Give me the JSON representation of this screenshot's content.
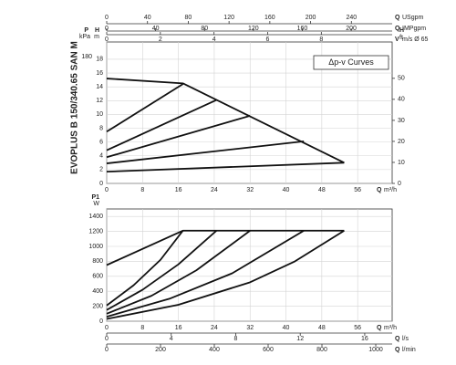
{
  "side_title": "EVOPLUS B 150/340.65 SAN M",
  "chart_data": [
    {
      "type": "line",
      "legend_box": "Δp-v Curves",
      "y_label": "H",
      "y_unit": "m",
      "ylim": [
        0,
        20.5
      ],
      "yticks": [
        0,
        2,
        4,
        6,
        8,
        10,
        12,
        14,
        16,
        18
      ],
      "x_label": "Q",
      "x_unit": "m³/h",
      "xlim": [
        0,
        63.7
      ],
      "xticks": [
        0,
        8,
        16,
        24,
        32,
        40,
        48,
        56
      ],
      "grid": true,
      "top_axes": [
        {
          "label": "Q",
          "unit": "USgpm",
          "lim": [
            0,
            280
          ],
          "ticks": [
            0,
            40,
            80,
            120,
            160,
            200,
            240
          ]
        },
        {
          "label": "Q",
          "unit": "IMPgpm",
          "lim": [
            0,
            233.5
          ],
          "ticks": [
            0,
            40,
            80,
            120,
            160,
            200
          ]
        },
        {
          "label": "V",
          "unit": "m/s Ø 65",
          "lim": [
            0,
            10.64
          ],
          "ticks": [
            0,
            2,
            4,
            6,
            8
          ]
        }
      ],
      "left_axes": [
        {
          "label": "P",
          "unit": "kPa",
          "lim": [
            0,
            201
          ],
          "ticks": [
            180
          ]
        }
      ],
      "right_axes": [
        {
          "label": "H",
          "unit": "ft",
          "lim": [
            0,
            67.3
          ],
          "ticks": [
            0,
            10,
            20,
            30,
            40,
            50
          ]
        }
      ],
      "series": [
        {
          "color": "#111111",
          "x": [
            0,
            17,
            53
          ],
          "values": [
            15.2,
            14.5,
            3.0
          ]
        },
        {
          "color": "#111111",
          "x": [
            0,
            17
          ],
          "values": [
            7.5,
            14.4
          ]
        },
        {
          "color": "#111111",
          "x": [
            0,
            24.5
          ],
          "values": [
            4.8,
            12.1
          ]
        },
        {
          "color": "#111111",
          "x": [
            0,
            32
          ],
          "values": [
            3.8,
            9.8
          ]
        },
        {
          "color": "#111111",
          "x": [
            0,
            44
          ],
          "values": [
            2.9,
            6.1
          ]
        },
        {
          "color": "#111111",
          "x": [
            0,
            53
          ],
          "values": [
            1.7,
            3.0
          ]
        }
      ]
    },
    {
      "type": "line",
      "y_label": "P1",
      "y_unit": "W",
      "ylim": [
        0,
        1500
      ],
      "yticks": [
        0,
        200,
        400,
        600,
        800,
        1000,
        1200,
        1400
      ],
      "x_label": "Q",
      "x_unit": "m³/h",
      "xlim": [
        0,
        63.7
      ],
      "xticks": [
        0,
        8,
        16,
        24,
        32,
        40,
        48,
        56
      ],
      "grid": true,
      "bottom_axes": [
        {
          "label": "Q",
          "unit": "l/s",
          "lim": [
            0,
            17.7
          ],
          "ticks": [
            0,
            4,
            8,
            12,
            16
          ]
        },
        {
          "label": "Q",
          "unit": "l/min",
          "lim": [
            0,
            1061
          ],
          "ticks": [
            0,
            200,
            400,
            600,
            800,
            1000
          ]
        }
      ],
      "series": [
        {
          "color": "#111111",
          "x": [
            0,
            17,
            53
          ],
          "values": [
            750,
            1210,
            1210
          ]
        },
        {
          "color": "#111111",
          "x": [
            0,
            6,
            12,
            17
          ],
          "values": [
            210,
            480,
            820,
            1210
          ]
        },
        {
          "color": "#111111",
          "x": [
            0,
            8,
            16,
            24.5
          ],
          "values": [
            150,
            420,
            760,
            1210
          ]
        },
        {
          "color": "#111111",
          "x": [
            0,
            10,
            20,
            32
          ],
          "values": [
            100,
            340,
            680,
            1210
          ]
        },
        {
          "color": "#111111",
          "x": [
            0,
            14,
            28,
            44
          ],
          "values": [
            60,
            300,
            640,
            1210
          ]
        },
        {
          "color": "#111111",
          "x": [
            0,
            16,
            32,
            42,
            53
          ],
          "values": [
            30,
            220,
            520,
            800,
            1210
          ]
        }
      ]
    }
  ]
}
